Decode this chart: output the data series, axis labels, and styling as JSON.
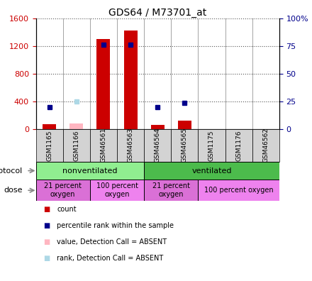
{
  "title": "GDS64 / M73701_at",
  "samples": [
    "GSM1165",
    "GSM1166",
    "GSM46561",
    "GSM46563",
    "GSM46564",
    "GSM46565",
    "GSM1175",
    "GSM1176",
    "GSM46562"
  ],
  "count_values": [
    75,
    null,
    1300,
    1420,
    65,
    120,
    null,
    null,
    null
  ],
  "rank_values": [
    20,
    null,
    76,
    76,
    20,
    24,
    null,
    null,
    null
  ],
  "count_absent": [
    null,
    80,
    null,
    null,
    null,
    null,
    null,
    null,
    null
  ],
  "rank_absent": [
    null,
    25,
    null,
    null,
    null,
    null,
    null,
    null,
    null
  ],
  "ylim_left": [
    0,
    1600
  ],
  "ylim_right": [
    0,
    100
  ],
  "yticks_left": [
    0,
    400,
    800,
    1200,
    1600
  ],
  "yticks_right": [
    0,
    25,
    50,
    75,
    100
  ],
  "ytick_labels_right": [
    "0",
    "25",
    "50",
    "75",
    "100%"
  ],
  "protocol_groups": [
    {
      "label": "nonventilated",
      "start": 0,
      "end": 4,
      "color": "#90EE90"
    },
    {
      "label": "ventilated",
      "start": 4,
      "end": 9,
      "color": "#4CBB4C"
    }
  ],
  "dose_groups": [
    {
      "label": "21 percent\noxygen",
      "start": 0,
      "end": 2,
      "color": "#DA70D6"
    },
    {
      "label": "100 percent\noxygen",
      "start": 2,
      "end": 4,
      "color": "#EE82EE"
    },
    {
      "label": "21 percent\noxygen",
      "start": 4,
      "end": 6,
      "color": "#DA70D6"
    },
    {
      "label": "100 percent oxygen",
      "start": 6,
      "end": 9,
      "color": "#EE82EE"
    }
  ],
  "count_color": "#CC0000",
  "rank_color": "#00008B",
  "count_absent_color": "#FFB6C1",
  "rank_absent_color": "#ADD8E6",
  "bar_width": 0.5,
  "dotted_grid_color": "#555555",
  "bg_color": "#ffffff",
  "sample_box_color": "#D3D3D3"
}
